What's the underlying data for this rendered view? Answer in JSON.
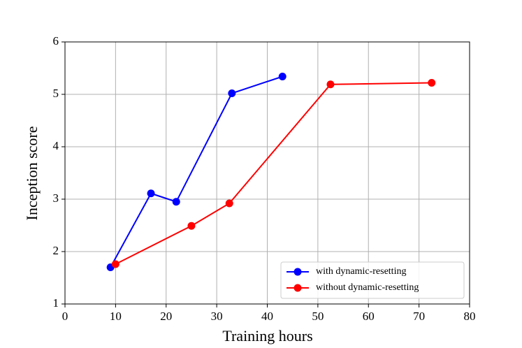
{
  "chart_data": {
    "type": "line",
    "xlabel": "Training hours",
    "ylabel": "Inception score",
    "series": [
      {
        "name": "with dynamic-resetting",
        "color": "#0000ff",
        "x": [
          9,
          17,
          22,
          33,
          43
        ],
        "values": [
          1.7,
          3.11,
          2.95,
          5.02,
          5.34
        ]
      },
      {
        "name": "without dynamic-resetting",
        "color": "#ff0000",
        "x": [
          10,
          25,
          32.5,
          52.5,
          72.5
        ],
        "values": [
          1.76,
          2.49,
          2.92,
          5.19,
          5.22
        ]
      }
    ],
    "xlim": [
      0,
      80
    ],
    "xticks": [
      0,
      10,
      20,
      30,
      40,
      50,
      60,
      70,
      80
    ],
    "ylim": [
      1,
      6
    ],
    "yticks": [
      1,
      2,
      3,
      4,
      5,
      6
    ],
    "grid": true,
    "legend": "lower right"
  }
}
